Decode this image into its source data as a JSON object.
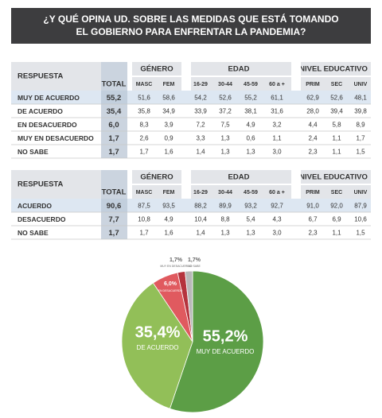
{
  "header": {
    "title_lines": [
      "¿Y QUÉ OPINA UD. SOBRE LAS MEDIDAS QUE ESTÁ TOMANDO",
      "EL GOBIERNO PARA ENFRENTAR LA PANDEMIA?"
    ]
  },
  "table1": {
    "groups": [
      "GÉNERO",
      "EDAD",
      "NIVEL EDUCATIVO"
    ],
    "columns": [
      "RESPUESTA",
      "TOTAL",
      "MASC",
      "FEM",
      "16-29",
      "30-44",
      "45-59",
      "60 a +",
      "PRIM",
      "SEC",
      "UNIV"
    ],
    "rows": [
      [
        "MUY DE ACUERDO",
        "55,2",
        "51,6",
        "58,6",
        "54,2",
        "52,6",
        "55,2",
        "61,1",
        "62,9",
        "52,6",
        "48,1"
      ],
      [
        "DE ACUERDO",
        "35,4",
        "35,8",
        "34,9",
        "33,9",
        "37,2",
        "38,1",
        "31,6",
        "28,0",
        "39,4",
        "39,8"
      ],
      [
        "EN DESACUERDO",
        "6,0",
        "8,3",
        "3,9",
        "7,2",
        "7,5",
        "4,9",
        "3,2",
        "4,4",
        "5,8",
        "8,9"
      ],
      [
        "MUY EN DESACUERDO",
        "1,7",
        "2,6",
        "0,9",
        "3,3",
        "1,3",
        "0,6",
        "1,1",
        "2,4",
        "1,1",
        "1,7"
      ],
      [
        "NO SABE",
        "1,7",
        "1,7",
        "1,6",
        "1,4",
        "1,3",
        "1,3",
        "3,0",
        "2,3",
        "1,1",
        "1,5"
      ]
    ]
  },
  "table2": {
    "groups": [
      "GÉNERO",
      "EDAD",
      "NIVEL EDUCATIVO"
    ],
    "columns": [
      "RESPUESTA",
      "TOTAL",
      "MASC",
      "FEM",
      "16-29",
      "30-44",
      "45-59",
      "60 a +",
      "PRIM",
      "SEC",
      "UNIV"
    ],
    "rows": [
      [
        "ACUERDO",
        "90,6",
        "87,5",
        "93,5",
        "88,2",
        "89,9",
        "93,2",
        "92,7",
        "91,0",
        "92,0",
        "87,9"
      ],
      [
        "DESACUERDO",
        "7,7",
        "10,8",
        "4,9",
        "10,4",
        "8,8",
        "5,4",
        "4,3",
        "6,7",
        "6,9",
        "10,6"
      ],
      [
        "NO SABE",
        "1,7",
        "1,7",
        "1,6",
        "1,4",
        "1,3",
        "1,3",
        "3,0",
        "2,3",
        "1,1",
        "1,5"
      ]
    ]
  },
  "chart_data": {
    "type": "pie",
    "categories": [
      "MUY DE ACUERDO",
      "DE ACUERDO",
      "EN DESACUERDO",
      "MUY EN DESACUERDO",
      "NO SABE"
    ],
    "values": [
      55.2,
      35.4,
      6.0,
      1.7,
      1.7
    ],
    "value_labels": [
      "55,2%",
      "35,4%",
      "6,0%",
      "1,7%",
      "1,7%"
    ],
    "colors": [
      "#5c9e46",
      "#92bf58",
      "#e05a5f",
      "#b5333d",
      "#b8b8b8"
    ]
  }
}
